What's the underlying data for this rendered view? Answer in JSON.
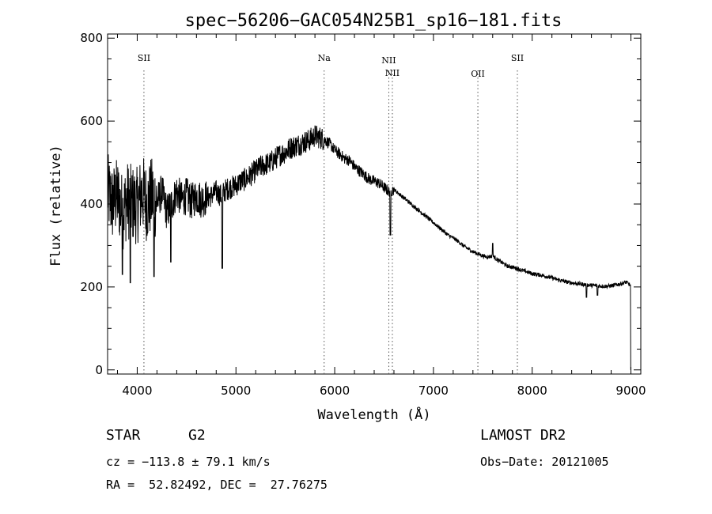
{
  "chart_data": {
    "type": "line",
    "title": "spec−56206−GAC054N25B1_sp16−181.fits",
    "xlabel": "Wavelength (Å)",
    "ylabel": "Flux (relative)",
    "xlim": [
      3700,
      9100
    ],
    "ylim": [
      -10,
      810
    ],
    "xticks": [
      4000,
      5000,
      6000,
      7000,
      8000,
      9000
    ],
    "yticks": [
      0,
      200,
      400,
      600,
      800
    ],
    "grid": false,
    "color": "#000000",
    "line_color": "#555555",
    "series": [
      {
        "x": [
          3700,
          3750,
          3800,
          3850,
          3900,
          3950,
          4000,
          4050,
          4100,
          4150,
          4200,
          4250,
          4300,
          4350,
          4400,
          4450,
          4500,
          4550,
          4600,
          4650,
          4700,
          4750,
          4800,
          4850,
          4900,
          4950,
          5000,
          5050,
          5100,
          5150,
          5200,
          5250,
          5300,
          5350,
          5400,
          5450,
          5500,
          5550,
          5600,
          5650,
          5700,
          5750,
          5800,
          5850,
          5900,
          5950,
          6000,
          6050,
          6100,
          6150,
          6200,
          6250,
          6300,
          6350,
          6400,
          6450,
          6500,
          6550,
          6600,
          6650,
          6700,
          6750,
          6800,
          6850,
          6900,
          6950,
          7000,
          7050,
          7100,
          7150,
          7200,
          7250,
          7300,
          7350,
          7400,
          7450,
          7500,
          7550,
          7600,
          7650,
          7700,
          7750,
          7800,
          7850,
          7900,
          7950,
          8000,
          8050,
          8100,
          8150,
          8200,
          8250,
          8300,
          8350,
          8400,
          8450,
          8500,
          8550,
          8600,
          8650,
          8700,
          8750,
          8800,
          8850,
          8900,
          8950,
          8990
        ],
        "y": [
          430,
          400,
          420,
          380,
          410,
          400,
          395,
          430,
          400,
          420,
          405,
          430,
          380,
          400,
          430,
          410,
          420,
          405,
          420,
          410,
          415,
          420,
          430,
          420,
          435,
          440,
          445,
          455,
          460,
          470,
          480,
          490,
          495,
          500,
          510,
          520,
          525,
          535,
          540,
          545,
          550,
          555,
          565,
          560,
          555,
          545,
          530,
          520,
          510,
          505,
          490,
          480,
          470,
          460,
          455,
          450,
          440,
          430,
          435,
          425,
          415,
          405,
          395,
          385,
          375,
          365,
          355,
          345,
          335,
          325,
          318,
          310,
          300,
          292,
          285,
          280,
          275,
          272,
          275,
          265,
          258,
          250,
          248,
          244,
          240,
          236,
          232,
          230,
          228,
          225,
          222,
          218,
          215,
          212,
          210,
          208,
          207,
          205,
          204,
          203,
          202,
          202,
          203,
          205,
          208,
          212,
          205
        ]
      }
    ],
    "lines": [
      {
        "label": "SII",
        "x": 4068
      },
      {
        "label": "Na",
        "x": 5893
      },
      {
        "label": "NII",
        "x": 6548
      },
      {
        "label": "NII",
        "x": 6584
      },
      {
        "label": "OII",
        "x": 7450
      },
      {
        "label": "SII",
        "x": 7850
      }
    ],
    "features": [
      {
        "x": 3775,
        "y": 470
      },
      {
        "x": 3850,
        "y": 230
      },
      {
        "x": 3930,
        "y": 210
      },
      {
        "x": 4170,
        "y": 225
      },
      {
        "x": 4340,
        "y": 260
      },
      {
        "x": 4861,
        "y": 245
      },
      {
        "x": 6563,
        "y": 325
      },
      {
        "x": 7600,
        "y": 305
      },
      {
        "x": 8550,
        "y": 175
      },
      {
        "x": 8662,
        "y": 180
      }
    ]
  },
  "info": {
    "object_class": "STAR",
    "subclass": "G2",
    "survey": "LAMOST DR2",
    "cz": "cz = −113.8 ± 79.1 km/s",
    "obs_date": "Obs−Date: 20121005",
    "coords": "RA =  52.82492, DEC =  27.76275"
  }
}
